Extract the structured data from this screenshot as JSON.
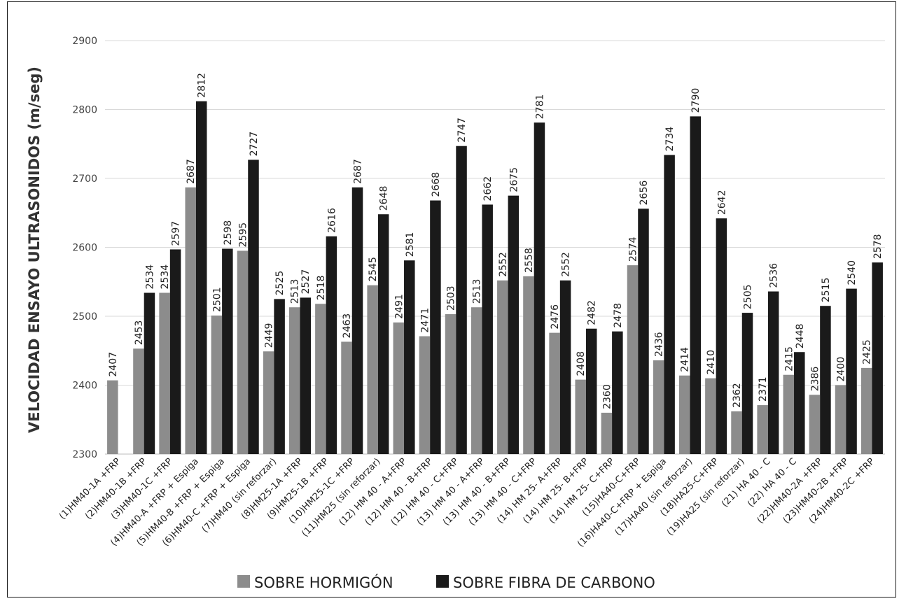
{
  "chart_data": {
    "type": "bar",
    "title": "",
    "xlabel": "",
    "ylabel": "VELOCIDAD ENSAYO ULTRASONIDOS (m/seg)",
    "ylim": [
      2300,
      2900
    ],
    "yticks": [
      2300,
      2400,
      2500,
      2600,
      2700,
      2800,
      2900
    ],
    "grid": true,
    "legend_position": "bottom",
    "categories": [
      "(1)HM40-1A +FRP",
      "(2)HM40-1B +FRP",
      "(3)HM40-1C +FRP",
      "(4)HM40-A +FRP + Espiga",
      "(5)HM40-B +FRP + Espiga",
      "(6)HM40-C +FRP + Espiga",
      "(7)HM40 (sin reforzar)",
      "(8)HM25-1A +FRP",
      "(9)HM25-1B +FRP",
      "(10)HM25-1C +FRP",
      "(11)HM25 (sin reforzar)",
      "(12) HM 40 - A+FRP",
      "(12) HM 40 - B+FRP",
      "(12) HM 40 - C+FRP",
      "(13) HM 40 - A+FRP",
      "(13) HM 40 - B+FRP",
      "(13) HM 40 - C+FRP",
      "(14) HM 25- A+FRP",
      "(14) HM 25- B+FRP",
      "(14) HM 25- C+FRP",
      "(15)HA40-C+FRP",
      "(16)HA40-C+FRP + Espiga",
      "(17)HA40 (sin reforzar)",
      "(18)HA25-C+FRP",
      "(19)HA25 (sin reforzar)",
      "(21) HA 40 - C",
      "(22) HA 40 - C",
      "(22)HM40-2A +FRP",
      "(23)HM40-2B +FRP",
      "(24)HM40-2C +FRP"
    ],
    "series": [
      {
        "name": "SOBRE HORMIGÓN",
        "color": "#8c8c8c",
        "values": [
          2407,
          2453,
          2534,
          2687,
          2501,
          2595,
          2449,
          2513,
          2518,
          2463,
          2545,
          2491,
          2471,
          2503,
          2513,
          2552,
          2558,
          2476,
          2408,
          2360,
          2574,
          2436,
          2414,
          2410,
          2362,
          2371,
          2415,
          2386,
          2400,
          2425
        ]
      },
      {
        "name": "SOBRE FIBRA DE CARBONO",
        "color": "#1a1a1a",
        "values": [
          null,
          2534,
          2597,
          2812,
          2598,
          2727,
          2525,
          2527,
          2616,
          2687,
          2648,
          2581,
          2668,
          2747,
          2662,
          2675,
          2781,
          2552,
          2482,
          2478,
          2656,
          2734,
          2790,
          2642,
          2505,
          2536,
          2448,
          2515,
          2540,
          2578
        ]
      }
    ]
  }
}
